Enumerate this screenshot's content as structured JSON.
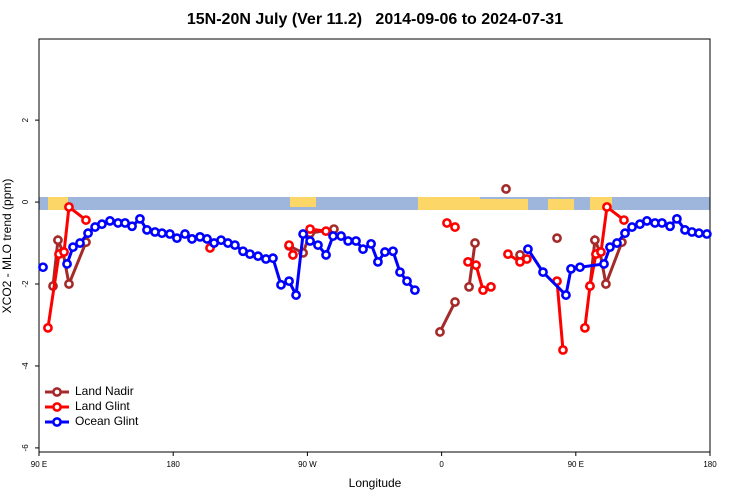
{
  "chart_data": {
    "type": "line",
    "title": "15N-20N July (Ver 11.2)   2014-09-06 to 2024-07-31",
    "x_label": "Longitude",
    "y_label": "XCO2 - MLO trend (ppm)",
    "xlim": [
      90,
      540
    ],
    "ylim": [
      -6.1,
      3.98
    ],
    "xticks": [
      {
        "value": 90,
        "label": "90 E"
      },
      180,
      {
        "value": 270,
        "label": "90 W"
      },
      {
        "value": 360,
        "label": "0"
      },
      {
        "value": 450,
        "label": "90 E"
      },
      {
        "value": 540,
        "label": "180"
      }
    ],
    "yticks": [
      -6,
      -4,
      -2,
      0,
      2
    ],
    "legend": "bottom-left",
    "series": [
      {
        "name": "Land Nadir",
        "color": "#a52a2a",
        "x": [
          99.4,
          102.7,
          106.1,
          110.1,
          121.5,
          null,
          257.7,
          267.1,
          271.8,
          287.8,
          null,
          358.9,
          369.0,
          null,
          378.4,
          382.4,
          null,
          403.2,
          null,
          412.6,
          null,
          437.4,
          null,
          459.5,
          462.8,
          466.2,
          470.2,
          480.9
        ],
        "values": [
          -2.05,
          -0.93,
          -1.22,
          -2.0,
          -0.98,
          null,
          -1.07,
          -1.24,
          -0.76,
          -0.66,
          null,
          -3.17,
          -2.44,
          null,
          -2.07,
          -1.0,
          null,
          0.32,
          null,
          -1.29,
          null,
          -0.88,
          null,
          -2.05,
          -0.93,
          -1.22,
          -2.0,
          -0.98
        ]
      },
      {
        "name": "Land Glint",
        "color": "#ff0000",
        "x": [
          96.0,
          103.4,
          106.8,
          110.1,
          121.5,
          null,
          204.7,
          null,
          257.7,
          260.3,
          null,
          271.8,
          282.5,
          null,
          363.6,
          369.0,
          null,
          377.7,
          383.1,
          387.8,
          393.1,
          null,
          404.5,
          412.6,
          417.2,
          null,
          437.4,
          441.4,
          null,
          456.1,
          459.5,
          463.5,
          466.9,
          470.9,
          482.3
        ],
        "values": [
          -3.07,
          -1.27,
          -1.22,
          -0.12,
          -0.44,
          null,
          -1.12,
          null,
          -1.05,
          -1.29,
          null,
          -0.66,
          -0.71,
          null,
          -0.51,
          -0.61,
          null,
          -1.46,
          -1.54,
          -2.15,
          -2.07,
          null,
          -1.27,
          -1.46,
          -1.39,
          null,
          -1.93,
          -3.61,
          null,
          -3.07,
          -2.05,
          -1.27,
          -1.22,
          -0.12,
          -0.44
        ]
      },
      {
        "name": "Ocean Glint",
        "color": "#0000ff",
        "x": [
          92.7,
          null,
          108.8,
          112.8,
          117.5,
          122.9,
          127.6,
          132.2,
          137.6,
          143.0,
          147.7,
          152.4,
          157.7,
          162.4,
          167.8,
          172.5,
          177.8,
          182.5,
          187.9,
          192.6,
          198.0,
          202.7,
          207.4,
          212.1,
          216.7,
          221.4,
          226.8,
          231.5,
          236.9,
          242.2,
          246.9,
          252.3,
          257.7,
          262.4,
          267.1,
          271.8,
          277.1,
          282.5,
          287.2,
          292.6,
          297.3,
          302.6,
          307.3,
          312.7,
          317.3,
          322.0,
          327.4,
          332.1,
          336.8,
          342.1,
          null,
          417.9,
          428.0,
          443.4,
          446.8,
          452.8,
          468.9,
          472.9,
          477.6,
          483.0,
          487.7,
          493.0,
          497.7,
          503.1,
          507.8,
          513.2,
          517.8,
          523.2,
          527.9,
          532.6,
          537.9
        ],
        "values": [
          -1.59,
          null,
          -1.51,
          -1.1,
          -1.0,
          -0.76,
          -0.61,
          -0.54,
          -0.46,
          -0.51,
          -0.51,
          -0.59,
          -0.41,
          -0.68,
          -0.73,
          -0.76,
          -0.78,
          -0.88,
          -0.78,
          -0.9,
          -0.85,
          -0.9,
          -1.0,
          -0.93,
          -1.0,
          -1.05,
          -1.2,
          -1.27,
          -1.32,
          -1.39,
          -1.37,
          -2.02,
          -1.93,
          -2.27,
          -0.78,
          -0.95,
          -1.05,
          -1.29,
          -0.83,
          -0.83,
          -0.95,
          -0.95,
          -1.15,
          -1.02,
          -1.46,
          -1.22,
          -1.2,
          -1.71,
          -1.93,
          -2.15,
          null,
          -1.15,
          -1.71,
          -2.27,
          -1.63,
          -1.59,
          -1.51,
          -1.1,
          -1.0,
          -0.76,
          -0.61,
          -0.54,
          -0.46,
          -0.51,
          -0.51,
          -0.59,
          -0.41,
          -0.68,
          -0.73,
          -0.76,
          -0.78
        ]
      }
    ]
  }
}
